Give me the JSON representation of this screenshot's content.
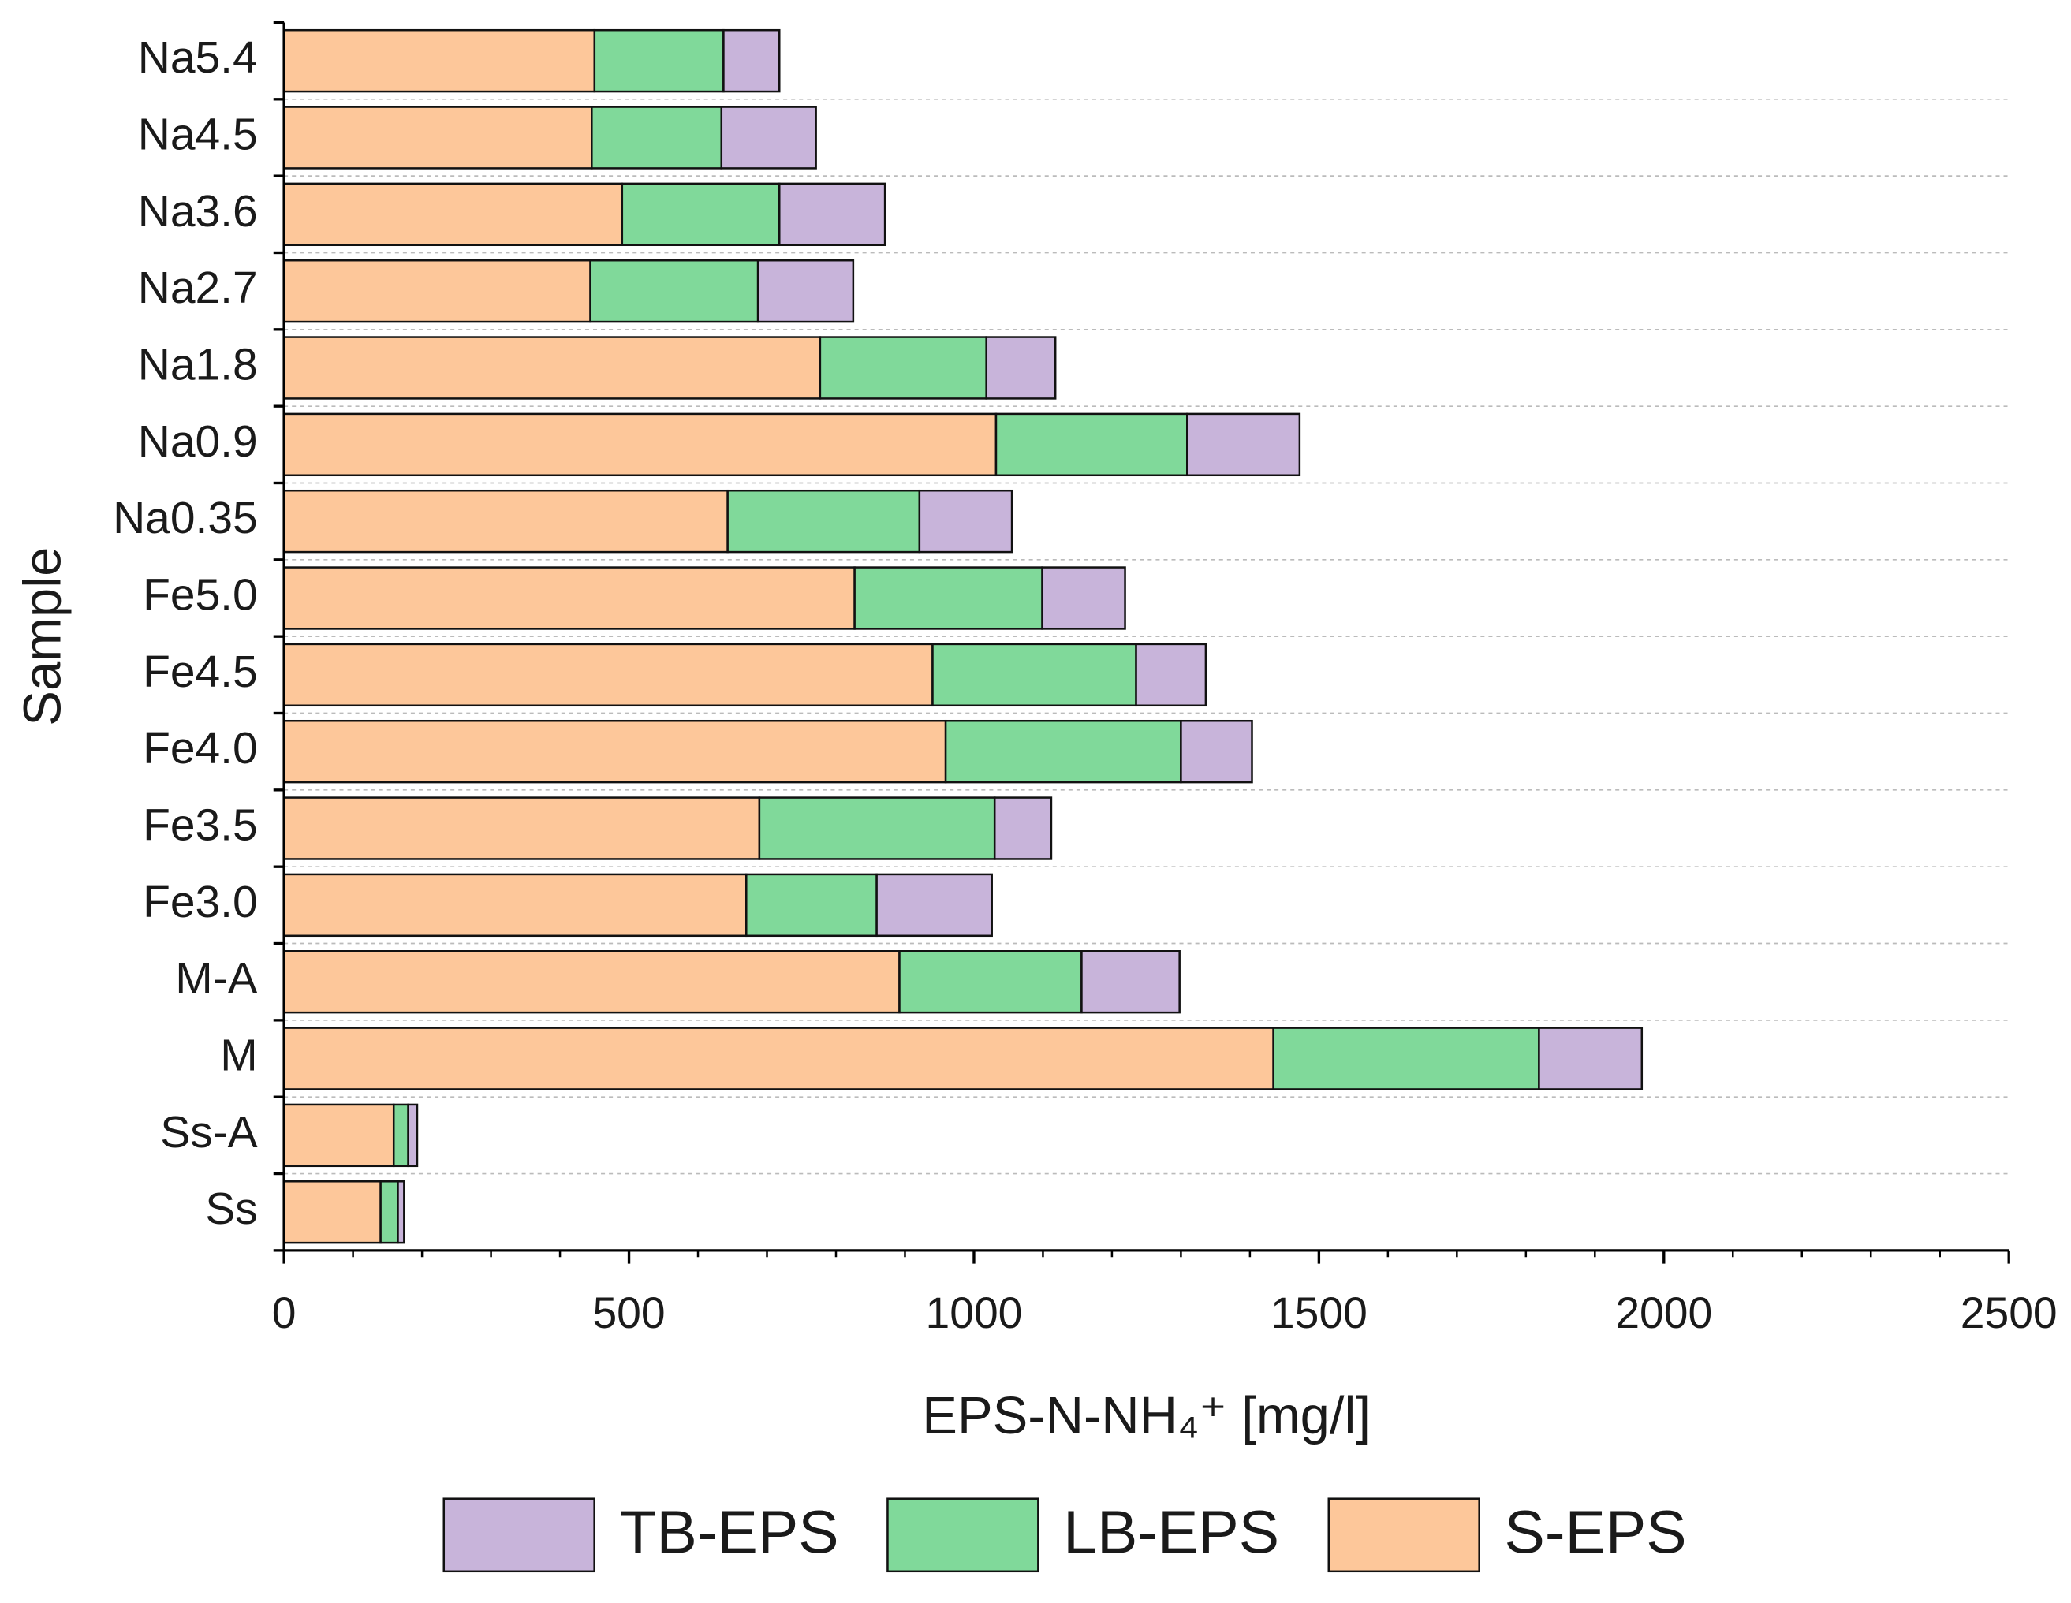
{
  "chart_data": {
    "type": "stacked-barh",
    "categories": [
      "Na5.4",
      "Na4.5",
      "Na3.6",
      "Na2.7",
      "Na1.8",
      "Na0.9",
      "Na0.35",
      "Fe5.0",
      "Fe4.5",
      "Fe4.0",
      "Fe3.5",
      "Fe3.0",
      "M-A",
      "M",
      "Ss-A",
      "Ss"
    ],
    "series": [
      {
        "name": "S-EPS",
        "color": "#fdc79a",
        "values": [
          450,
          446,
          490,
          444,
          777,
          1032,
          643,
          827,
          940,
          959,
          689,
          670,
          892,
          1434,
          159,
          140
        ]
      },
      {
        "name": "LB-EPS",
        "color": "#80d99a",
        "values": [
          187,
          188,
          228,
          243,
          241,
          277,
          278,
          272,
          295,
          341,
          341,
          189,
          264,
          385,
          21,
          25
        ]
      },
      {
        "name": "TB-EPS",
        "color": "#c8b4da",
        "values": [
          81,
          137,
          153,
          138,
          100,
          163,
          134,
          120,
          101,
          103,
          82,
          167,
          142,
          149,
          13,
          9
        ]
      }
    ],
    "xlabel": "EPS-N-NH₄⁺ [mg/l]",
    "ylabel": "Sample",
    "xlim": [
      0,
      2500
    ],
    "xticks": [
      0,
      500,
      1000,
      1500,
      2000,
      2500
    ],
    "xminorticks": [
      100,
      200,
      300,
      400,
      600,
      700,
      800,
      900,
      1100,
      1200,
      1300,
      1400,
      1600,
      1700,
      1800,
      1900,
      2100,
      2200,
      2300,
      2400
    ],
    "grid": true,
    "legend": "bottom"
  }
}
